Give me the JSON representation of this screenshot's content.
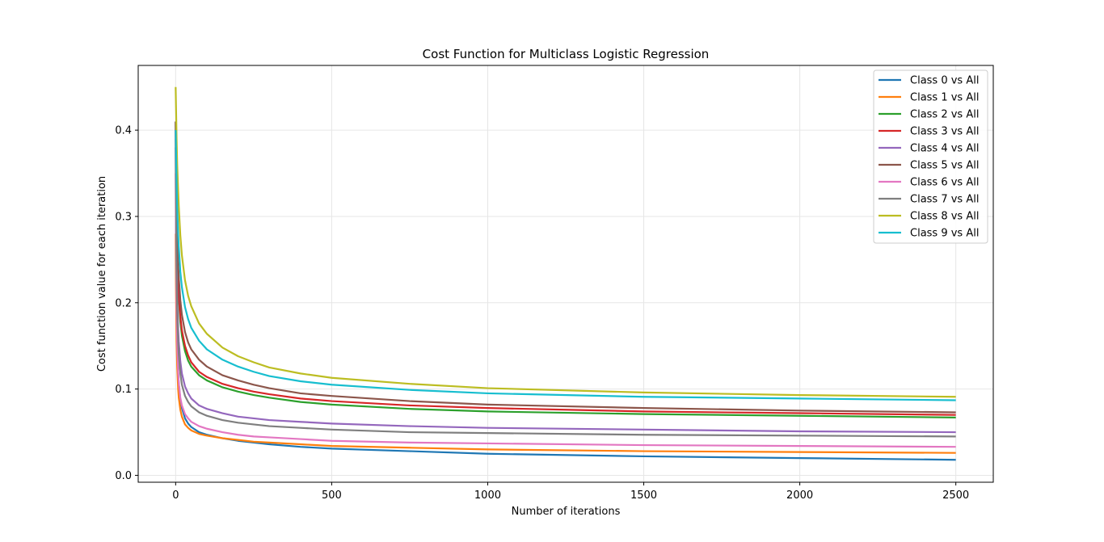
{
  "chart_data": {
    "type": "line",
    "title": "Cost Function for Multiclass Logistic Regression",
    "xlabel": "Number of iterations",
    "ylabel": "Cost function value for each iteration",
    "xlim": [
      -120,
      2620
    ],
    "ylim": [
      -0.008,
      0.475
    ],
    "xticks": [
      0,
      500,
      1000,
      1500,
      2000,
      2500
    ],
    "xtick_labels": [
      "0",
      "500",
      "1000",
      "1500",
      "2000",
      "2500"
    ],
    "yticks": [
      0.0,
      0.1,
      0.2,
      0.3,
      0.4
    ],
    "ytick_labels": [
      "0.0",
      "0.1",
      "0.2",
      "0.3",
      "0.4"
    ],
    "grid": true,
    "legend_position": "top-right",
    "x": [
      0,
      1,
      2,
      3,
      5,
      8,
      10,
      15,
      20,
      30,
      40,
      50,
      75,
      100,
      150,
      200,
      250,
      300,
      400,
      500,
      750,
      1000,
      1500,
      2000,
      2500
    ],
    "series": [
      {
        "name": "Class 0 vs All",
        "color": "#1f77b4",
        "values": [
          0.38,
          0.3,
          0.24,
          0.2,
          0.155,
          0.12,
          0.106,
          0.088,
          0.078,
          0.066,
          0.06,
          0.056,
          0.05,
          0.047,
          0.043,
          0.04,
          0.038,
          0.036,
          0.033,
          0.031,
          0.028,
          0.025,
          0.022,
          0.02,
          0.018
        ]
      },
      {
        "name": "Class 1 vs All",
        "color": "#ff7f0e",
        "values": [
          0.28,
          0.22,
          0.18,
          0.155,
          0.125,
          0.1,
          0.09,
          0.076,
          0.068,
          0.059,
          0.055,
          0.052,
          0.048,
          0.046,
          0.043,
          0.041,
          0.039,
          0.038,
          0.036,
          0.034,
          0.032,
          0.03,
          0.028,
          0.027,
          0.026
        ]
      },
      {
        "name": "Class 2 vs All",
        "color": "#2ca02c",
        "values": [
          0.41,
          0.36,
          0.32,
          0.29,
          0.255,
          0.22,
          0.205,
          0.178,
          0.162,
          0.144,
          0.133,
          0.126,
          0.116,
          0.11,
          0.102,
          0.097,
          0.093,
          0.09,
          0.085,
          0.082,
          0.077,
          0.074,
          0.071,
          0.069,
          0.067
        ]
      },
      {
        "name": "Class 3 vs All",
        "color": "#d62728",
        "values": [
          0.4,
          0.36,
          0.32,
          0.295,
          0.26,
          0.23,
          0.21,
          0.184,
          0.168,
          0.15,
          0.139,
          0.131,
          0.12,
          0.114,
          0.106,
          0.101,
          0.097,
          0.094,
          0.089,
          0.086,
          0.081,
          0.078,
          0.074,
          0.072,
          0.07
        ]
      },
      {
        "name": "Class 4 vs All",
        "color": "#9467bd",
        "values": [
          0.4,
          0.34,
          0.29,
          0.25,
          0.205,
          0.17,
          0.155,
          0.132,
          0.118,
          0.103,
          0.095,
          0.089,
          0.081,
          0.077,
          0.072,
          0.068,
          0.066,
          0.064,
          0.062,
          0.06,
          0.057,
          0.055,
          0.053,
          0.051,
          0.05
        ]
      },
      {
        "name": "Class 5 vs All",
        "color": "#8c564b",
        "values": [
          0.41,
          0.37,
          0.34,
          0.31,
          0.28,
          0.245,
          0.23,
          0.203,
          0.186,
          0.166,
          0.154,
          0.146,
          0.134,
          0.126,
          0.116,
          0.11,
          0.105,
          0.101,
          0.095,
          0.092,
          0.086,
          0.082,
          0.078,
          0.075,
          0.073
        ]
      },
      {
        "name": "Class 6 vs All",
        "color": "#e377c2",
        "values": [
          0.35,
          0.28,
          0.23,
          0.19,
          0.15,
          0.12,
          0.107,
          0.09,
          0.081,
          0.071,
          0.066,
          0.062,
          0.057,
          0.054,
          0.05,
          0.047,
          0.045,
          0.044,
          0.042,
          0.04,
          0.038,
          0.037,
          0.035,
          0.034,
          0.033
        ]
      },
      {
        "name": "Class 7 vs All",
        "color": "#7f7f7f",
        "values": [
          0.39,
          0.32,
          0.27,
          0.235,
          0.19,
          0.155,
          0.14,
          0.118,
          0.105,
          0.092,
          0.085,
          0.08,
          0.073,
          0.069,
          0.064,
          0.061,
          0.059,
          0.057,
          0.055,
          0.053,
          0.05,
          0.049,
          0.047,
          0.046,
          0.045
        ]
      },
      {
        "name": "Class 8 vs All",
        "color": "#bcbd22",
        "values": [
          0.45,
          0.43,
          0.41,
          0.39,
          0.36,
          0.33,
          0.312,
          0.278,
          0.255,
          0.226,
          0.208,
          0.196,
          0.176,
          0.164,
          0.148,
          0.138,
          0.131,
          0.125,
          0.118,
          0.113,
          0.106,
          0.101,
          0.096,
          0.093,
          0.091
        ]
      },
      {
        "name": "Class 9 vs All",
        "color": "#17becf",
        "values": [
          0.4,
          0.38,
          0.36,
          0.34,
          0.31,
          0.28,
          0.265,
          0.236,
          0.218,
          0.195,
          0.181,
          0.171,
          0.156,
          0.146,
          0.134,
          0.126,
          0.12,
          0.115,
          0.109,
          0.105,
          0.099,
          0.095,
          0.091,
          0.089,
          0.087
        ]
      }
    ]
  }
}
